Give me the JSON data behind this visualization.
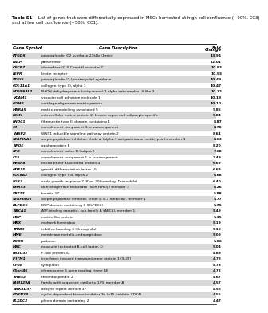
{
  "title_bold": "Table S1.",
  "title_regular": " List of genes that were differentially expressed in MSCs harvested at high cell confluence (~90%, CC3) and at low cell confluence (~50%, CC1).",
  "col_headers": [
    "Gene Symbol",
    "Gene Description",
    "Fold\nChange"
  ],
  "rows": [
    [
      "PTGDS",
      "prostaglandin D2 synthase 21kDa (brain)",
      "13.94"
    ],
    [
      "PALM",
      "paralemmin",
      "12.01"
    ],
    [
      "CXCR7",
      "chemokine (C-X-C motif) receptor 7",
      "10.83"
    ],
    [
      "LEPR",
      "leptin receptor",
      "10.53"
    ],
    [
      "PTGIS",
      "prostaglandin I2 (prostacyclin) synthase",
      "10.49"
    ],
    [
      "COL11A1",
      "collagen, type XI, alpha 1",
      "10.47"
    ],
    [
      "NDUFA4L2",
      "NADH dehydrogenase (ubiquinone) 1 alpha subcomplex, 4-like 2",
      "10.22"
    ],
    [
      "VCAM1",
      "vascular cell adhesion molecule 1",
      "10.19"
    ],
    [
      "COMP",
      "cartilage oligomeric matrix protein",
      "10.10"
    ],
    [
      "MXRA5",
      "matrix-remodelling associated 5",
      "9.86"
    ],
    [
      "ECM1",
      "extracellular matrix protein 2, female organ and adipocyte specific",
      "9.84"
    ],
    [
      "FNDC1",
      "fibronectin type III domain containing 1",
      "8.87"
    ],
    [
      "C3",
      "complement component 3, o subcomponent",
      "8.78"
    ],
    [
      "WISP2",
      "WNT1 inducible signaling pathway protein 2",
      "8.64"
    ],
    [
      "SERPINA1",
      "serpin peptidase inhibitor, clade A (alpha-1 antiproteinase, antitrypsin), member 1",
      "8.63"
    ],
    [
      "APOE",
      "apolipoprotein E",
      "8.20"
    ],
    [
      "CFD",
      "complement factor D (adipsin)",
      "7.68"
    ],
    [
      "C1S",
      "complement component 1, s subcomponent",
      "7.49"
    ],
    [
      "MFAP4",
      "microfibrillar associated protein 4",
      "6.69"
    ],
    [
      "GDF15",
      "growth differentiation factor 15",
      "6.69"
    ],
    [
      "COL8A2",
      "collagen, type VIII, alpha 2",
      "6.68"
    ],
    [
      "EGR2",
      "early growth response 2 (Krox-20 homolog, Drosophila)",
      "6.40"
    ],
    [
      "DHRS3",
      "dehydrogenase/reductase (SDR family) member 3",
      "6.26"
    ],
    [
      "KRT17",
      "keratin 17",
      "5.88"
    ],
    [
      "SERPING1",
      "serpin peptidase inhibitor, clade G (C1 inhibitor), member 1",
      "5.77"
    ],
    [
      "DLPDC6",
      "DUP domain containing 6 (DLPDC6)",
      "5.75"
    ],
    [
      "ABCA1",
      "ATP-binding cassette, sub-family A (ABC1), member 1",
      "5.49"
    ],
    [
      "MGP",
      "matrix Gla protein",
      "5.35"
    ],
    [
      "MKX",
      "mohawk homeobox",
      "5.19"
    ],
    [
      "TRIB3",
      "tribbles homolog 3 (Drosophila)",
      "5.10"
    ],
    [
      "MME",
      "membrane metallo-endopeptidase",
      "5.09"
    ],
    [
      "PODN",
      "podocan",
      "5.06"
    ],
    [
      "MSC",
      "musculin (activated B-cell factor-1)",
      "5.04"
    ],
    [
      "FBXO32",
      "F-box protein 32",
      "4.89"
    ],
    [
      "IFITM1",
      "interferon induced transmembrane protein 1 (9-27)",
      "4.78"
    ],
    [
      "CYGB",
      "cytoglobin",
      "4.73"
    ],
    [
      "C5orf46",
      "chromosome 5 open reading frame 46",
      "4.72"
    ],
    [
      "THBS2",
      "thrombospondin 2",
      "4.67"
    ],
    [
      "FAM129A",
      "family with sequence similarity 129, member A",
      "4.57"
    ],
    [
      "ANKRD37",
      "ankyrin repeat domain 37",
      "4.56"
    ],
    [
      "CDKN2B",
      "cyclin-dependent kinase inhibitor 2b (p15, inhibits CDK4)",
      "4.55"
    ],
    [
      "PLXDC2",
      "plexin domain containing 2",
      "4.47"
    ]
  ],
  "shade_color": "#d9d9d9",
  "background_color": "#ffffff",
  "title_line1": "Table S1. List of genes that were differentially expressed in MSCs harvested at high cell confluence (~90%, CC3)",
  "title_line2": "and at low cell confluence (~50%, CC1)."
}
